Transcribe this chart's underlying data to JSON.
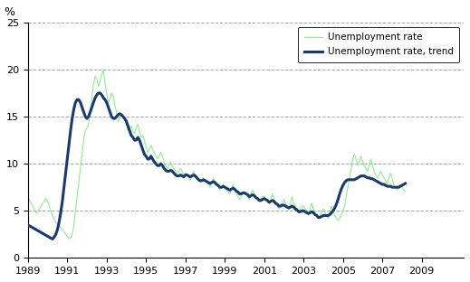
{
  "title": "",
  "ylabel": "%",
  "ylim": [
    0,
    25
  ],
  "yticks": [
    0,
    5,
    10,
    15,
    20,
    25
  ],
  "xtick_positions": [
    1989,
    1991,
    1993,
    1995,
    1997,
    1999,
    2001,
    2003,
    2005,
    2007,
    2009
  ],
  "xtick_labels": [
    "1989",
    "1991",
    "1993",
    "1995",
    "1997",
    "1999",
    "2001",
    "2003",
    "2005",
    "2007",
    "2009"
  ],
  "line_color_raw": "#90ee90",
  "line_color_trend": "#1a3a6e",
  "legend_raw": "Unemployment rate",
  "legend_trend": "Unemployment rate, trend",
  "background_color": "#ffffff",
  "grid_color": "#aaaaaa",
  "raw_data": [
    6.5,
    6.1,
    5.8,
    5.5,
    5.1,
    4.8,
    4.9,
    5.2,
    5.5,
    5.8,
    6.0,
    6.3,
    6.0,
    5.5,
    5.0,
    4.5,
    4.1,
    3.8,
    3.6,
    3.4,
    3.2,
    3.0,
    2.8,
    2.5,
    2.3,
    2.0,
    2.1,
    2.5,
    3.5,
    5.0,
    6.5,
    8.0,
    9.5,
    11.0,
    12.5,
    13.5,
    13.8,
    14.2,
    15.5,
    17.0,
    18.5,
    19.3,
    19.0,
    18.2,
    18.8,
    19.5,
    20.0,
    18.5,
    17.5,
    16.5,
    16.8,
    17.5,
    17.2,
    16.2,
    15.5,
    14.5,
    14.8,
    15.2,
    15.0,
    14.5,
    14.2,
    13.5,
    13.8,
    14.0,
    13.5,
    13.2,
    13.8,
    14.2,
    13.5,
    12.8,
    13.0,
    12.5,
    11.8,
    11.2,
    11.5,
    12.0,
    11.5,
    11.2,
    10.8,
    10.5,
    10.8,
    11.2,
    10.8,
    10.2,
    9.8,
    9.5,
    9.8,
    10.2,
    9.8,
    9.5,
    9.2,
    9.0,
    9.2,
    9.5,
    9.2,
    8.8,
    9.0,
    8.8,
    8.5,
    8.2,
    8.8,
    9.2,
    8.8,
    8.5,
    8.2,
    8.0,
    8.2,
    8.5,
    8.2,
    8.0,
    7.8,
    7.5,
    8.0,
    8.5,
    8.0,
    7.8,
    7.5,
    7.2,
    7.5,
    7.8,
    7.5,
    7.2,
    7.0,
    6.8,
    7.2,
    7.8,
    7.2,
    6.8,
    6.5,
    6.2,
    6.5,
    6.8,
    7.0,
    6.8,
    6.5,
    6.2,
    6.8,
    7.2,
    6.8,
    6.5,
    6.2,
    6.0,
    6.2,
    6.5,
    6.5,
    6.2,
    6.0,
    5.8,
    6.2,
    6.8,
    6.2,
    5.8,
    5.5,
    5.2,
    5.5,
    5.8,
    6.2,
    5.8,
    5.5,
    5.2,
    5.8,
    6.5,
    5.8,
    5.5,
    5.2,
    5.0,
    5.2,
    5.5,
    5.5,
    5.2,
    5.0,
    4.8,
    5.2,
    5.8,
    5.2,
    4.8,
    4.5,
    4.2,
    4.5,
    4.8,
    5.2,
    4.8,
    4.5,
    4.2,
    4.8,
    5.5,
    4.8,
    4.5,
    4.2,
    4.0,
    4.2,
    4.5,
    5.0,
    5.5,
    6.5,
    7.5,
    8.5,
    9.5,
    10.5,
    11.0,
    10.5,
    9.8,
    10.2,
    10.8,
    10.2,
    9.8,
    9.5,
    9.2,
    9.8,
    10.5,
    9.8,
    9.2,
    8.8,
    8.5,
    8.8,
    9.2,
    8.8,
    8.5,
    8.2,
    7.8,
    8.5,
    9.0,
    8.5,
    7.8,
    7.5,
    7.2,
    7.5,
    7.8,
    7.5,
    7.2,
    7.0
  ],
  "trend_data": [
    3.5,
    3.4,
    3.3,
    3.2,
    3.1,
    3.0,
    2.9,
    2.8,
    2.7,
    2.6,
    2.5,
    2.4,
    2.3,
    2.2,
    2.1,
    2.0,
    2.2,
    2.5,
    3.0,
    3.8,
    4.8,
    6.0,
    7.5,
    9.0,
    10.5,
    12.0,
    13.5,
    14.8,
    15.8,
    16.5,
    16.8,
    16.8,
    16.5,
    16.0,
    15.5,
    15.0,
    14.8,
    15.0,
    15.5,
    16.0,
    16.5,
    17.0,
    17.3,
    17.5,
    17.5,
    17.3,
    17.0,
    16.8,
    16.5,
    16.0,
    15.5,
    15.0,
    14.8,
    14.8,
    15.0,
    15.2,
    15.3,
    15.2,
    15.0,
    14.8,
    14.5,
    14.0,
    13.5,
    13.0,
    12.8,
    12.5,
    12.5,
    12.8,
    12.5,
    12.0,
    11.5,
    11.0,
    10.8,
    10.5,
    10.5,
    10.8,
    10.5,
    10.2,
    10.0,
    9.8,
    9.8,
    10.0,
    9.8,
    9.5,
    9.3,
    9.2,
    9.2,
    9.3,
    9.2,
    9.0,
    8.8,
    8.7,
    8.7,
    8.8,
    8.7,
    8.6,
    8.8,
    8.8,
    8.7,
    8.6,
    8.7,
    8.8,
    8.7,
    8.5,
    8.3,
    8.2,
    8.2,
    8.3,
    8.2,
    8.1,
    8.0,
    7.9,
    8.0,
    8.1,
    8.0,
    7.8,
    7.7,
    7.5,
    7.5,
    7.6,
    7.5,
    7.4,
    7.3,
    7.2,
    7.3,
    7.4,
    7.3,
    7.1,
    7.0,
    6.8,
    6.8,
    6.9,
    6.9,
    6.8,
    6.7,
    6.5,
    6.6,
    6.7,
    6.6,
    6.4,
    6.3,
    6.1,
    6.1,
    6.2,
    6.3,
    6.2,
    6.1,
    5.9,
    6.0,
    6.1,
    6.0,
    5.8,
    5.7,
    5.5,
    5.5,
    5.6,
    5.6,
    5.5,
    5.4,
    5.3,
    5.4,
    5.5,
    5.4,
    5.2,
    5.1,
    4.9,
    4.9,
    5.0,
    5.0,
    4.9,
    4.8,
    4.7,
    4.8,
    4.9,
    4.8,
    4.6,
    4.5,
    4.3,
    4.3,
    4.4,
    4.5,
    4.5,
    4.5,
    4.5,
    4.6,
    4.8,
    5.0,
    5.3,
    5.7,
    6.2,
    6.8,
    7.3,
    7.7,
    8.0,
    8.2,
    8.3,
    8.3,
    8.3,
    8.3,
    8.3,
    8.4,
    8.5,
    8.6,
    8.7,
    8.7,
    8.7,
    8.6,
    8.5,
    8.5,
    8.4,
    8.4,
    8.3,
    8.2,
    8.1,
    8.0,
    7.9,
    7.8,
    7.8,
    7.7,
    7.6,
    7.6,
    7.6,
    7.5,
    7.5,
    7.5,
    7.5,
    7.5,
    7.6,
    7.7,
    7.8,
    7.9
  ]
}
